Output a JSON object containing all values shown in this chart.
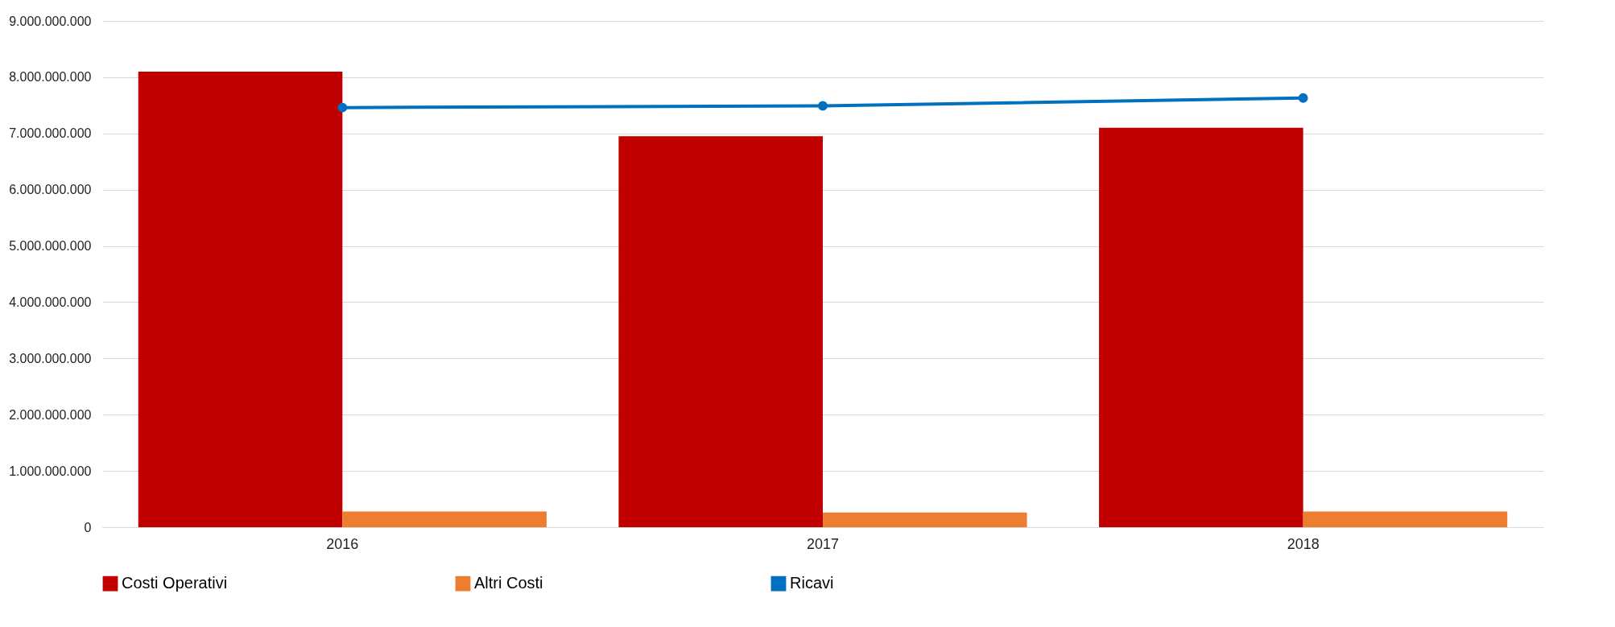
{
  "chart_data": {
    "type": "bar",
    "categories": [
      "2016",
      "2017",
      "2018"
    ],
    "series": [
      {
        "name": "Costi Operativi",
        "color": "#c00000",
        "values": [
          8100000000,
          6950000000,
          7100000000
        ]
      },
      {
        "name": "Altri Costi",
        "color": "#ed7d31",
        "values": [
          280000000,
          260000000,
          280000000
        ]
      },
      {
        "name": "Ricavi",
        "type": "line",
        "color": "#0070c0",
        "values": [
          7460000000,
          7490000000,
          7630000000
        ]
      }
    ],
    "ylim": [
      0,
      9000000000
    ],
    "yticks": [
      {
        "value": 0,
        "label": "0"
      },
      {
        "value": 1000000000,
        "label": "1.000.000.000"
      },
      {
        "value": 2000000000,
        "label": "2.000.000.000"
      },
      {
        "value": 3000000000,
        "label": "3.000.000.000"
      },
      {
        "value": 4000000000,
        "label": "4.000.000.000"
      },
      {
        "value": 5000000000,
        "label": "5.000.000.000"
      },
      {
        "value": 6000000000,
        "label": "6.000.000.000"
      },
      {
        "value": 7000000000,
        "label": "7.000.000.000"
      },
      {
        "value": 8000000000,
        "label": "8.000.000.000"
      },
      {
        "value": 9000000000,
        "label": "9.000.000.000"
      }
    ],
    "grid": "y",
    "legend": "bottom",
    "marker": "circle",
    "line_style": "solid"
  }
}
